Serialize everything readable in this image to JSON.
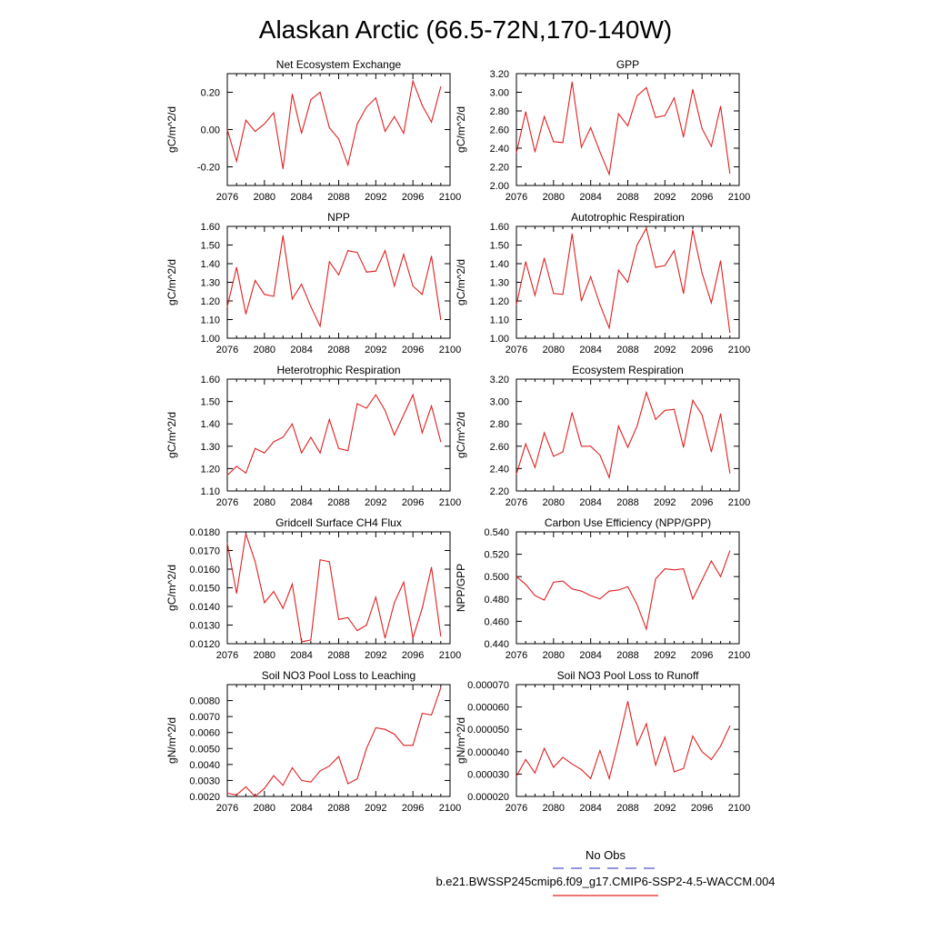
{
  "figure_title": "Alaskan Arctic (66.5-72N,170-140W)",
  "legend": {
    "obs_label": "No Obs",
    "obs_color": "#5555cc",
    "model_label": "b.e21.BWSSP245cmip6.f09_g17.CMIP6-SSP2-4.5-WACCM.004",
    "model_color": "#e02020"
  },
  "chart_data": [
    {
      "type": "line",
      "title": "Net Ecosystem Exchange",
      "ylabel": "gC/m^2/d",
      "xlim": [
        2076,
        2100
      ],
      "ylim": [
        -0.3,
        0.3
      ],
      "xticks": [
        "2076",
        "2080",
        "2084",
        "2088",
        "2092",
        "2096",
        "2100"
      ],
      "yticks": [
        "-0.20",
        "0.00",
        "0.20"
      ],
      "ytick_values": [
        -0.2,
        0.0,
        0.2
      ],
      "x": [
        2076,
        2077,
        2078,
        2079,
        2080,
        2081,
        2082,
        2083,
        2084,
        2085,
        2086,
        2087,
        2088,
        2089,
        2090,
        2091,
        2092,
        2093,
        2094,
        2095,
        2096,
        2097,
        2098,
        2099
      ],
      "series": [
        {
          "values": [
            0.0,
            -0.17,
            0.05,
            -0.01,
            0.03,
            0.09,
            -0.21,
            0.19,
            -0.02,
            0.16,
            0.2,
            0.01,
            -0.05,
            -0.19,
            0.03,
            0.12,
            0.17,
            -0.01,
            0.07,
            -0.02,
            0.26,
            0.13,
            0.04,
            0.23
          ],
          "color": "#e02020"
        }
      ]
    },
    {
      "type": "line",
      "title": "GPP",
      "ylabel": "gC/m^2/d",
      "xlim": [
        2076,
        2100
      ],
      "ylim": [
        2.0,
        3.2
      ],
      "xticks": [
        "2076",
        "2080",
        "2084",
        "2088",
        "2092",
        "2096",
        "2100"
      ],
      "yticks": [
        "2.00",
        "2.20",
        "2.40",
        "2.60",
        "2.80",
        "3.00",
        "3.20"
      ],
      "ytick_values": [
        2.0,
        2.2,
        2.4,
        2.6,
        2.8,
        3.0,
        3.2
      ],
      "x": [
        2076,
        2077,
        2078,
        2079,
        2080,
        2081,
        2082,
        2083,
        2084,
        2085,
        2086,
        2087,
        2088,
        2089,
        2090,
        2091,
        2092,
        2093,
        2094,
        2095,
        2096,
        2097,
        2098,
        2099
      ],
      "series": [
        {
          "values": [
            2.35,
            2.79,
            2.36,
            2.74,
            2.47,
            2.46,
            3.11,
            2.41,
            2.62,
            2.36,
            2.12,
            2.77,
            2.64,
            2.96,
            3.05,
            2.73,
            2.75,
            2.94,
            2.52,
            3.03,
            2.61,
            2.42,
            2.85,
            2.13
          ],
          "color": "#e02020"
        }
      ]
    },
    {
      "type": "line",
      "title": "NPP",
      "ylabel": "gC/m^2/d",
      "xlim": [
        2076,
        2100
      ],
      "ylim": [
        1.0,
        1.6
      ],
      "xticks": [
        "2076",
        "2080",
        "2084",
        "2088",
        "2092",
        "2096",
        "2100"
      ],
      "yticks": [
        "1.00",
        "1.10",
        "1.20",
        "1.30",
        "1.40",
        "1.50",
        "1.60"
      ],
      "ytick_values": [
        1.0,
        1.1,
        1.2,
        1.3,
        1.4,
        1.5,
        1.6
      ],
      "x": [
        2076,
        2077,
        2078,
        2079,
        2080,
        2081,
        2082,
        2083,
        2084,
        2085,
        2086,
        2087,
        2088,
        2089,
        2090,
        2091,
        2092,
        2093,
        2094,
        2095,
        2096,
        2097,
        2098,
        2099
      ],
      "series": [
        {
          "values": [
            1.17,
            1.38,
            1.13,
            1.31,
            1.235,
            1.225,
            1.55,
            1.21,
            1.29,
            1.17,
            1.065,
            1.41,
            1.34,
            1.47,
            1.46,
            1.355,
            1.36,
            1.47,
            1.28,
            1.45,
            1.28,
            1.235,
            1.44,
            1.1
          ],
          "color": "#e02020"
        }
      ]
    },
    {
      "type": "line",
      "title": "Autotrophic Respiration",
      "ylabel": "gC/m^2/d",
      "xlim": [
        2076,
        2100
      ],
      "ylim": [
        1.0,
        1.6
      ],
      "xticks": [
        "2076",
        "2080",
        "2084",
        "2088",
        "2092",
        "2096",
        "2100"
      ],
      "yticks": [
        "1.00",
        "1.10",
        "1.20",
        "1.30",
        "1.40",
        "1.50",
        "1.60"
      ],
      "ytick_values": [
        1.0,
        1.1,
        1.2,
        1.3,
        1.4,
        1.5,
        1.6
      ],
      "x": [
        2076,
        2077,
        2078,
        2079,
        2080,
        2081,
        2082,
        2083,
        2084,
        2085,
        2086,
        2087,
        2088,
        2089,
        2090,
        2091,
        2092,
        2093,
        2094,
        2095,
        2096,
        2097,
        2098,
        2099
      ],
      "series": [
        {
          "values": [
            1.18,
            1.41,
            1.23,
            1.43,
            1.24,
            1.235,
            1.56,
            1.2,
            1.33,
            1.18,
            1.055,
            1.365,
            1.3,
            1.5,
            1.59,
            1.38,
            1.39,
            1.47,
            1.24,
            1.58,
            1.35,
            1.19,
            1.415,
            1.03
          ],
          "color": "#e02020"
        }
      ]
    },
    {
      "type": "line",
      "title": "Heterotrophic Respiration",
      "ylabel": "gC/m^2/d",
      "xlim": [
        2076,
        2100
      ],
      "ylim": [
        1.1,
        1.6
      ],
      "xticks": [
        "2076",
        "2080",
        "2084",
        "2088",
        "2092",
        "2096",
        "2100"
      ],
      "yticks": [
        "1.10",
        "1.20",
        "1.30",
        "1.40",
        "1.50",
        "1.60"
      ],
      "ytick_values": [
        1.1,
        1.2,
        1.3,
        1.4,
        1.5,
        1.6
      ],
      "x": [
        2076,
        2077,
        2078,
        2079,
        2080,
        2081,
        2082,
        2083,
        2084,
        2085,
        2086,
        2087,
        2088,
        2089,
        2090,
        2091,
        2092,
        2093,
        2094,
        2095,
        2096,
        2097,
        2098,
        2099
      ],
      "series": [
        {
          "values": [
            1.17,
            1.21,
            1.18,
            1.29,
            1.27,
            1.32,
            1.34,
            1.4,
            1.27,
            1.34,
            1.27,
            1.42,
            1.29,
            1.28,
            1.49,
            1.47,
            1.53,
            1.46,
            1.35,
            1.44,
            1.53,
            1.36,
            1.48,
            1.32
          ],
          "color": "#e02020"
        }
      ]
    },
    {
      "type": "line",
      "title": "Ecosystem Respiration",
      "ylabel": "gC/m^2/d",
      "xlim": [
        2076,
        2100
      ],
      "ylim": [
        2.2,
        3.2
      ],
      "xticks": [
        "2076",
        "2080",
        "2084",
        "2088",
        "2092",
        "2096",
        "2100"
      ],
      "yticks": [
        "2.20",
        "2.40",
        "2.60",
        "2.80",
        "3.00",
        "3.20"
      ],
      "ytick_values": [
        2.2,
        2.4,
        2.6,
        2.8,
        3.0,
        3.2
      ],
      "x": [
        2076,
        2077,
        2078,
        2079,
        2080,
        2081,
        2082,
        2083,
        2084,
        2085,
        2086,
        2087,
        2088,
        2089,
        2090,
        2091,
        2092,
        2093,
        2094,
        2095,
        2096,
        2097,
        2098,
        2099
      ],
      "series": [
        {
          "values": [
            2.35,
            2.62,
            2.41,
            2.72,
            2.51,
            2.55,
            2.9,
            2.6,
            2.6,
            2.52,
            2.32,
            2.78,
            2.59,
            2.78,
            3.08,
            2.84,
            2.92,
            2.93,
            2.59,
            3.01,
            2.88,
            2.55,
            2.89,
            2.36
          ],
          "color": "#e02020"
        }
      ]
    },
    {
      "type": "line",
      "title": "Gridcell Surface CH4 Flux",
      "ylabel": "gC/m^2/d",
      "xlim": [
        2076,
        2100
      ],
      "ylim": [
        0.012,
        0.018
      ],
      "xticks": [
        "2076",
        "2080",
        "2084",
        "2088",
        "2092",
        "2096",
        "2100"
      ],
      "yticks": [
        "0.0120",
        "0.0130",
        "0.0140",
        "0.0150",
        "0.0160",
        "0.0170",
        "0.0180"
      ],
      "ytick_values": [
        0.012,
        0.013,
        0.014,
        0.015,
        0.016,
        0.017,
        0.018
      ],
      "x": [
        2076,
        2077,
        2078,
        2079,
        2080,
        2081,
        2082,
        2083,
        2084,
        2085,
        2086,
        2087,
        2088,
        2089,
        2090,
        2091,
        2092,
        2093,
        2094,
        2095,
        2096,
        2097,
        2098,
        2099
      ],
      "series": [
        {
          "values": [
            0.0174,
            0.0147,
            0.0179,
            0.0164,
            0.0142,
            0.0148,
            0.0139,
            0.0152,
            0.0121,
            0.0122,
            0.0165,
            0.0164,
            0.0133,
            0.0134,
            0.0127,
            0.013,
            0.0145,
            0.0123,
            0.0142,
            0.0153,
            0.0123,
            0.0139,
            0.0161,
            0.0124
          ],
          "color": "#e02020"
        }
      ]
    },
    {
      "type": "line",
      "title": "Carbon Use Efficiency (NPP/GPP)",
      "ylabel": "NPP/GPP",
      "xlim": [
        2076,
        2100
      ],
      "ylim": [
        0.44,
        0.54
      ],
      "xticks": [
        "2076",
        "2080",
        "2084",
        "2088",
        "2092",
        "2096",
        "2100"
      ],
      "yticks": [
        "0.440",
        "0.460",
        "0.480",
        "0.500",
        "0.520",
        "0.540"
      ],
      "ytick_values": [
        0.44,
        0.46,
        0.48,
        0.5,
        0.52,
        0.54
      ],
      "x": [
        2076,
        2077,
        2078,
        2079,
        2080,
        2081,
        2082,
        2083,
        2084,
        2085,
        2086,
        2087,
        2088,
        2089,
        2090,
        2091,
        2092,
        2093,
        2094,
        2095,
        2096,
        2097,
        2098,
        2099
      ],
      "series": [
        {
          "values": [
            0.5,
            0.493,
            0.483,
            0.479,
            0.495,
            0.496,
            0.489,
            0.487,
            0.483,
            0.48,
            0.487,
            0.488,
            0.491,
            0.475,
            0.453,
            0.498,
            0.507,
            0.506,
            0.507,
            0.48,
            0.497,
            0.514,
            0.5,
            0.523
          ],
          "color": "#e02020"
        }
      ]
    },
    {
      "type": "line",
      "title": "Soil NO3 Pool Loss to Leaching",
      "ylabel": "gN/m^2/d",
      "xlim": [
        2076,
        2100
      ],
      "ylim": [
        0.002,
        0.009
      ],
      "xticks": [
        "2076",
        "2080",
        "2084",
        "2088",
        "2092",
        "2096",
        "2100"
      ],
      "yticks": [
        "0.0020",
        "0.0030",
        "0.0040",
        "0.0050",
        "0.0060",
        "0.0070",
        "0.0080"
      ],
      "ytick_values": [
        0.002,
        0.003,
        0.004,
        0.005,
        0.006,
        0.007,
        0.008
      ],
      "x": [
        2076,
        2077,
        2078,
        2079,
        2080,
        2081,
        2082,
        2083,
        2084,
        2085,
        2086,
        2087,
        2088,
        2089,
        2090,
        2091,
        2092,
        2093,
        2094,
        2095,
        2096,
        2097,
        2098,
        2099
      ],
      "series": [
        {
          "values": [
            0.0022,
            0.0021,
            0.0026,
            0.002,
            0.0025,
            0.0033,
            0.0027,
            0.0038,
            0.003,
            0.0029,
            0.0036,
            0.0039,
            0.0045,
            0.0028,
            0.0031,
            0.005,
            0.0063,
            0.0062,
            0.0059,
            0.0052,
            0.0052,
            0.0072,
            0.0071,
            0.0088
          ],
          "color": "#e02020"
        }
      ]
    },
    {
      "type": "line",
      "title": "Soil NO3 Pool Loss to Runoff",
      "ylabel": "gN/m^2/d",
      "xlim": [
        2076,
        2100
      ],
      "ylim": [
        2e-05,
        7e-05
      ],
      "xticks": [
        "2076",
        "2080",
        "2084",
        "2088",
        "2092",
        "2096",
        "2100"
      ],
      "yticks": [
        "0.000020",
        "0.000030",
        "0.000040",
        "0.000050",
        "0.000060",
        "0.000070"
      ],
      "ytick_values": [
        2e-05,
        3e-05,
        4e-05,
        5e-05,
        6e-05,
        7e-05
      ],
      "x": [
        2076,
        2077,
        2078,
        2079,
        2080,
        2081,
        2082,
        2083,
        2084,
        2085,
        2086,
        2087,
        2088,
        2089,
        2090,
        2091,
        2092,
        2093,
        2094,
        2095,
        2096,
        2097,
        2098,
        2099
      ],
      "series": [
        {
          "values": [
            2.9e-05,
            3.65e-05,
            3.05e-05,
            4.15e-05,
            3.3e-05,
            3.75e-05,
            3.45e-05,
            3.2e-05,
            2.8e-05,
            4.05e-05,
            2.8e-05,
            4.45e-05,
            6.25e-05,
            4.3e-05,
            5.25e-05,
            3.4e-05,
            4.65e-05,
            3.1e-05,
            3.25e-05,
            4.7e-05,
            4e-05,
            3.65e-05,
            4.25e-05,
            5.15e-05
          ],
          "color": "#e02020"
        }
      ]
    }
  ]
}
